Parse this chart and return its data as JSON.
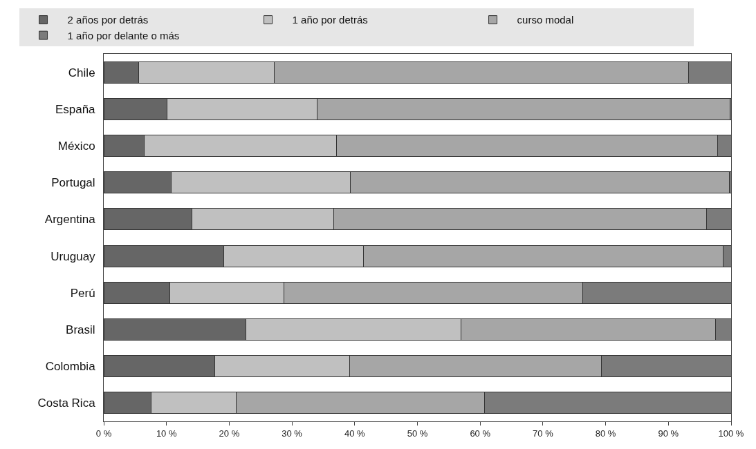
{
  "chart_data": {
    "type": "bar",
    "orientation": "horizontal",
    "stacked": true,
    "legend": "top",
    "grid": false,
    "categories": [
      "Chile",
      "España",
      "México",
      "Portugal",
      "Argentina",
      "Uruguay",
      "Perú",
      "Brasil",
      "Colombia",
      "Costa Rica"
    ],
    "series": [
      {
        "name": "2 años por detrás",
        "color": "#666666",
        "values": [
          5.6,
          10.1,
          6.4,
          10.7,
          14.1,
          19.1,
          10.5,
          22.7,
          17.7,
          7.5
        ]
      },
      {
        "name": "1 año por detrás",
        "color": "#c0c0c0",
        "values": [
          21.6,
          23.9,
          30.7,
          28.6,
          22.6,
          22.3,
          18.2,
          34.2,
          21.5,
          13.6
        ]
      },
      {
        "name": "curso modal",
        "color": "#a6a6a6",
        "values": [
          66.0,
          65.8,
          60.8,
          60.4,
          59.4,
          57.3,
          47.6,
          40.6,
          40.1,
          39.6
        ]
      },
      {
        "name": "1 año por delante o más",
        "color": "#7b7b7b",
        "values": [
          6.8,
          0.2,
          2.1,
          0.3,
          3.9,
          1.3,
          23.7,
          2.5,
          20.7,
          39.3
        ]
      }
    ],
    "xlim": [
      0,
      100
    ],
    "xticks": [
      {
        "value": 0,
        "label": "0 %"
      },
      {
        "value": 10,
        "label": "10 %"
      },
      {
        "value": 20,
        "label": "20 %"
      },
      {
        "value": 30,
        "label": "30 %"
      },
      {
        "value": 40,
        "label": "40 %"
      },
      {
        "value": 50,
        "label": "50 %"
      },
      {
        "value": 60,
        "label": "60 %"
      },
      {
        "value": 70,
        "label": "70 %"
      },
      {
        "value": 80,
        "label": "80 %"
      },
      {
        "value": 90,
        "label": "90 %"
      },
      {
        "value": 100,
        "label": "100 %"
      }
    ]
  }
}
